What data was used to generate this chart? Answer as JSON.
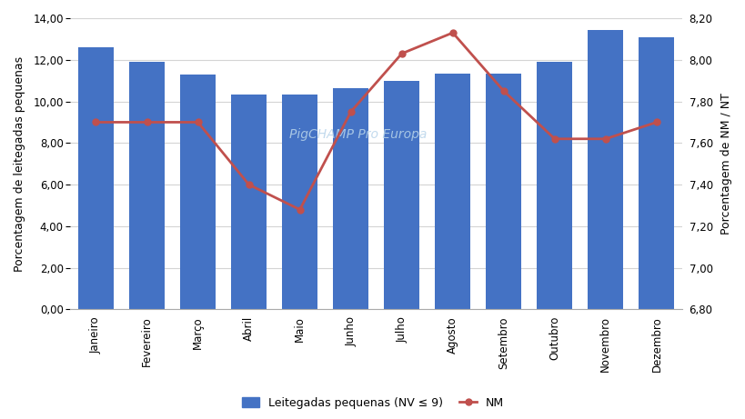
{
  "months": [
    "Janeiro",
    "Fevereiro",
    "Março",
    "Abril",
    "Maio",
    "Junho",
    "Julho",
    "Agosto",
    "Setembro",
    "Outubro",
    "Novembro",
    "Dezembro"
  ],
  "bar_values": [
    12.6,
    11.9,
    11.3,
    10.35,
    10.35,
    10.65,
    11.0,
    11.35,
    11.35,
    11.9,
    13.45,
    13.1
  ],
  "line_values": [
    7.7,
    7.7,
    7.7,
    7.4,
    7.28,
    7.75,
    8.03,
    8.13,
    7.85,
    7.62,
    7.62,
    7.7
  ],
  "bar_color": "#4472C4",
  "line_color": "#C0504D",
  "left_ylabel": "Porcentagem de leitegadas pequenas",
  "right_ylabel": "Porcentagem de NM / NT",
  "left_ylim": [
    0,
    14.0
  ],
  "left_yticks": [
    0.0,
    2.0,
    4.0,
    6.0,
    8.0,
    10.0,
    12.0,
    14.0
  ],
  "right_ylim": [
    6.8,
    8.2
  ],
  "right_yticks": [
    6.8,
    7.0,
    7.2,
    7.4,
    7.6,
    7.8,
    8.0,
    8.2
  ],
  "watermark": "PigCHAMP Pro Europa",
  "legend_bar_label": "Leitegadas pequenas (NV ≤ 9)",
  "legend_line_label": "NM",
  "background_color": "#ffffff",
  "grid_color": "#d4d4d4"
}
